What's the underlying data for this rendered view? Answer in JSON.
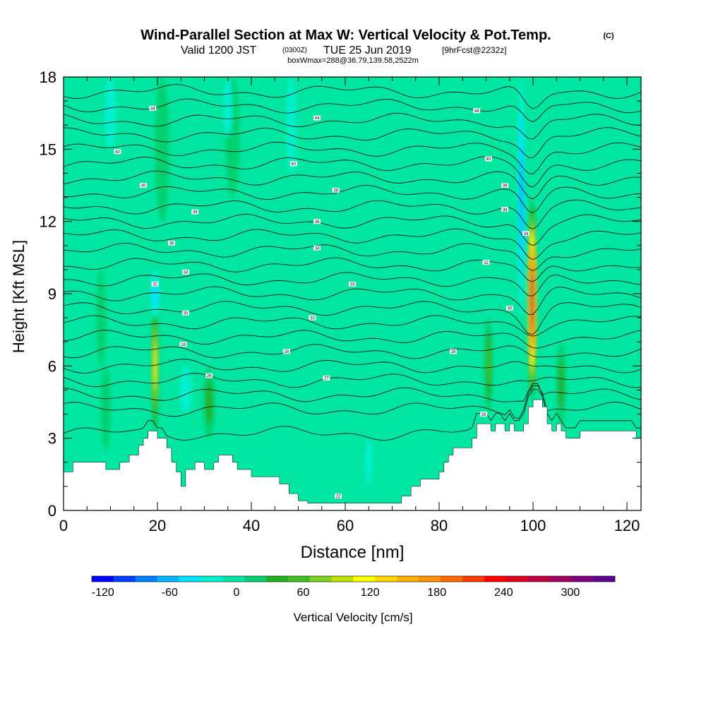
{
  "header": {
    "title": "Wind-Parallel Section at Max W: Vertical Velocity & Pot.Temp.",
    "copyright": "(C)",
    "valid_prefix": "Valid 1200 JST",
    "valid_utc": "(0300Z)",
    "valid_date": "TUE 25 Jun 2019",
    "forecast": "[9hrFcst@2232z]",
    "box_info": "boxWmax=288@36.79,139.58,2522m"
  },
  "chart_data": {
    "type": "heatmap",
    "title": "Wind-Parallel Section at Max W: Vertical Velocity & Pot.Temp.",
    "xlabel": "Distance [nm]",
    "ylabel": "Height [Kft MSL]",
    "xlim": [
      0,
      123
    ],
    "ylim": [
      0,
      18
    ],
    "x_ticks": [
      "0",
      "20",
      "40",
      "60",
      "80",
      "100",
      "120"
    ],
    "y_ticks": [
      "0",
      "3",
      "6",
      "9",
      "12",
      "15",
      "18"
    ],
    "colorbar": {
      "label": "Vertical Velocity [cm/s]",
      "min": -130,
      "max": 340,
      "step": 20,
      "tick_labels": [
        "-120",
        "-60",
        "0",
        "60",
        "120",
        "180",
        "240",
        "300"
      ],
      "tick_values": [
        -120,
        -60,
        0,
        60,
        120,
        180,
        240,
        300
      ],
      "colors": [
        "#0000ff",
        "#0040ff",
        "#0080ff",
        "#00b4ff",
        "#00e0ff",
        "#00f0d0",
        "#00e6a0",
        "#00d070",
        "#20b020",
        "#40c020",
        "#80d020",
        "#c0e000",
        "#ffff00",
        "#ffd800",
        "#ffb000",
        "#ff9000",
        "#ff6a00",
        "#ff3c00",
        "#ff0000",
        "#e00020",
        "#c00040",
        "#a00060",
        "#800080",
        "#600090"
      ]
    },
    "background_value": 0,
    "updraft_columns": [
      {
        "x": 19.5,
        "y0": 3,
        "y1": 9,
        "w": 120,
        "width": 1.6
      },
      {
        "x": 31,
        "y0": 3,
        "y1": 6,
        "w": 40,
        "width": 2.5
      },
      {
        "x": 9,
        "y0": 2.5,
        "y1": 6,
        "w": 35,
        "width": 2
      },
      {
        "x": 90.5,
        "y0": 4,
        "y1": 8,
        "w": 60,
        "width": 1.8
      },
      {
        "x": 99.8,
        "y0": 4.5,
        "y1": 13,
        "w": 288,
        "width": 2.2
      },
      {
        "x": 106,
        "y0": 3.5,
        "y1": 7,
        "w": 45,
        "width": 2
      },
      {
        "x": 21,
        "y0": 12,
        "y1": 18,
        "w": 35,
        "width": 3
      },
      {
        "x": 36,
        "y0": 13,
        "y1": 18,
        "w": 30,
        "width": 3
      },
      {
        "x": 8,
        "y0": 6,
        "y1": 10,
        "w": 30,
        "width": 2
      }
    ],
    "downdraft_columns": [
      {
        "x": 19.5,
        "y0": 8,
        "y1": 10,
        "w": -45,
        "width": 2
      },
      {
        "x": 97.5,
        "y0": 8,
        "y1": 18,
        "w": -75,
        "width": 1.6
      },
      {
        "x": 10,
        "y0": 15,
        "y1": 18,
        "w": -25,
        "width": 2.5
      },
      {
        "x": 35,
        "y0": 15.5,
        "y1": 18,
        "w": -25,
        "width": 2
      },
      {
        "x": 48.5,
        "y0": 14,
        "y1": 18,
        "w": -30,
        "width": 2
      },
      {
        "x": 26,
        "y0": 4,
        "y1": 6,
        "w": -25,
        "width": 2.5
      },
      {
        "x": 65,
        "y0": 1,
        "y1": 3,
        "w": -20,
        "width": 1.5
      }
    ],
    "terrain_kft": [
      [
        0,
        1.6
      ],
      [
        2,
        1.6
      ],
      [
        2,
        2
      ],
      [
        9,
        2
      ],
      [
        9,
        1.7
      ],
      [
        12,
        1.7
      ],
      [
        12,
        2
      ],
      [
        14,
        2
      ],
      [
        14,
        2.3
      ],
      [
        16,
        2.3
      ],
      [
        16,
        2.7
      ],
      [
        17,
        2.7
      ],
      [
        17,
        3
      ],
      [
        18,
        3
      ],
      [
        18,
        3.3
      ],
      [
        20,
        3.3
      ],
      [
        20,
        3
      ],
      [
        22,
        3
      ],
      [
        22,
        2.6
      ],
      [
        23,
        2.6
      ],
      [
        23,
        2
      ],
      [
        24,
        2
      ],
      [
        24,
        1.6
      ],
      [
        25,
        1.6
      ],
      [
        25,
        1
      ],
      [
        26,
        1
      ],
      [
        26,
        1.7
      ],
      [
        28,
        1.7
      ],
      [
        28,
        2
      ],
      [
        30,
        2
      ],
      [
        30,
        1.7
      ],
      [
        32,
        1.7
      ],
      [
        32,
        2
      ],
      [
        33,
        2
      ],
      [
        33,
        2.3
      ],
      [
        36,
        2.3
      ],
      [
        36,
        2
      ],
      [
        37,
        2
      ],
      [
        37,
        1.7
      ],
      [
        40,
        1.7
      ],
      [
        40,
        1.4
      ],
      [
        46,
        1.4
      ],
      [
        46,
        1.1
      ],
      [
        48,
        1.1
      ],
      [
        48,
        0.7
      ],
      [
        50,
        0.7
      ],
      [
        50,
        0.4
      ],
      [
        52,
        0.4
      ],
      [
        52,
        0.3
      ],
      [
        72,
        0.3
      ],
      [
        72,
        0.6
      ],
      [
        74,
        0.6
      ],
      [
        74,
        1
      ],
      [
        76,
        1
      ],
      [
        76,
        1.3
      ],
      [
        80,
        1.3
      ],
      [
        80,
        1.6
      ],
      [
        81,
        1.6
      ],
      [
        81,
        2
      ],
      [
        82,
        2
      ],
      [
        82,
        2.3
      ],
      [
        83,
        2.3
      ],
      [
        83,
        2.6
      ],
      [
        87,
        2.6
      ],
      [
        87,
        3
      ],
      [
        88,
        3
      ],
      [
        88,
        3.6
      ],
      [
        91,
        3.6
      ],
      [
        91,
        3.3
      ],
      [
        92,
        3.3
      ],
      [
        92,
        3.6
      ],
      [
        94,
        3.6
      ],
      [
        94,
        3.3
      ],
      [
        95,
        3.3
      ],
      [
        95,
        3.6
      ],
      [
        96,
        3.6
      ],
      [
        96,
        3.3
      ],
      [
        98,
        3.3
      ],
      [
        98,
        3.6
      ],
      [
        99,
        3.6
      ],
      [
        99,
        4.3
      ],
      [
        100,
        4.3
      ],
      [
        100,
        4.6
      ],
      [
        102,
        4.6
      ],
      [
        102,
        4.3
      ],
      [
        103,
        4.3
      ],
      [
        103,
        3.6
      ],
      [
        104,
        3.6
      ],
      [
        104,
        3.3
      ],
      [
        105,
        3.3
      ],
      [
        105,
        3.6
      ],
      [
        106,
        3.6
      ],
      [
        106,
        3.3
      ],
      [
        107,
        3.3
      ],
      [
        107,
        3
      ],
      [
        110,
        3
      ],
      [
        110,
        3.3
      ],
      [
        122,
        3.3
      ],
      [
        122,
        3
      ],
      [
        123,
        3
      ]
    ],
    "theta_levels_kft": [
      3.2,
      4.2,
      4.8,
      5.4,
      6.0,
      6.6,
      7.2,
      7.8,
      8.4,
      9.0,
      9.6,
      10.2,
      10.8,
      11.4,
      12.0,
      12.6,
      13.2,
      13.8,
      14.4,
      15.0,
      15.6,
      16.2,
      16.8,
      17.4
    ],
    "contour_labels": [
      {
        "x": 19,
        "y": 16.7,
        "t": "44"
      },
      {
        "x": 11.5,
        "y": 14.9,
        "t": "40"
      },
      {
        "x": 17,
        "y": 13.5,
        "t": "40"
      },
      {
        "x": 28,
        "y": 12.4,
        "t": "38"
      },
      {
        "x": 23,
        "y": 11.1,
        "t": "36"
      },
      {
        "x": 26,
        "y": 9.9,
        "t": "34"
      },
      {
        "x": 19.5,
        "y": 9.4,
        "t": "32"
      },
      {
        "x": 26,
        "y": 8.2,
        "t": "30"
      },
      {
        "x": 25.5,
        "y": 6.9,
        "t": "28"
      },
      {
        "x": 31,
        "y": 5.6,
        "t": "26"
      },
      {
        "x": 54,
        "y": 16.3,
        "t": "44"
      },
      {
        "x": 49,
        "y": 14.4,
        "t": "40"
      },
      {
        "x": 58,
        "y": 13.3,
        "t": "38"
      },
      {
        "x": 54,
        "y": 12,
        "t": "36"
      },
      {
        "x": 54,
        "y": 10.9,
        "t": "34"
      },
      {
        "x": 61.5,
        "y": 9.4,
        "t": "33"
      },
      {
        "x": 53,
        "y": 8,
        "t": "30"
      },
      {
        "x": 47.5,
        "y": 6.6,
        "t": "28"
      },
      {
        "x": 56,
        "y": 5.5,
        "t": "27"
      },
      {
        "x": 88,
        "y": 16.6,
        "t": "44"
      },
      {
        "x": 90.5,
        "y": 14.6,
        "t": "40"
      },
      {
        "x": 94,
        "y": 13.5,
        "t": "38"
      },
      {
        "x": 94,
        "y": 12.5,
        "t": "38"
      },
      {
        "x": 98.5,
        "y": 11.5,
        "t": "34"
      },
      {
        "x": 90,
        "y": 10.3,
        "t": "32"
      },
      {
        "x": 95,
        "y": 8.4,
        "t": "30"
      },
      {
        "x": 83,
        "y": 6.6,
        "t": "28"
      },
      {
        "x": 89.5,
        "y": 4,
        "t": "26"
      },
      {
        "x": 58.5,
        "y": 0.6,
        "t": "22"
      }
    ]
  }
}
